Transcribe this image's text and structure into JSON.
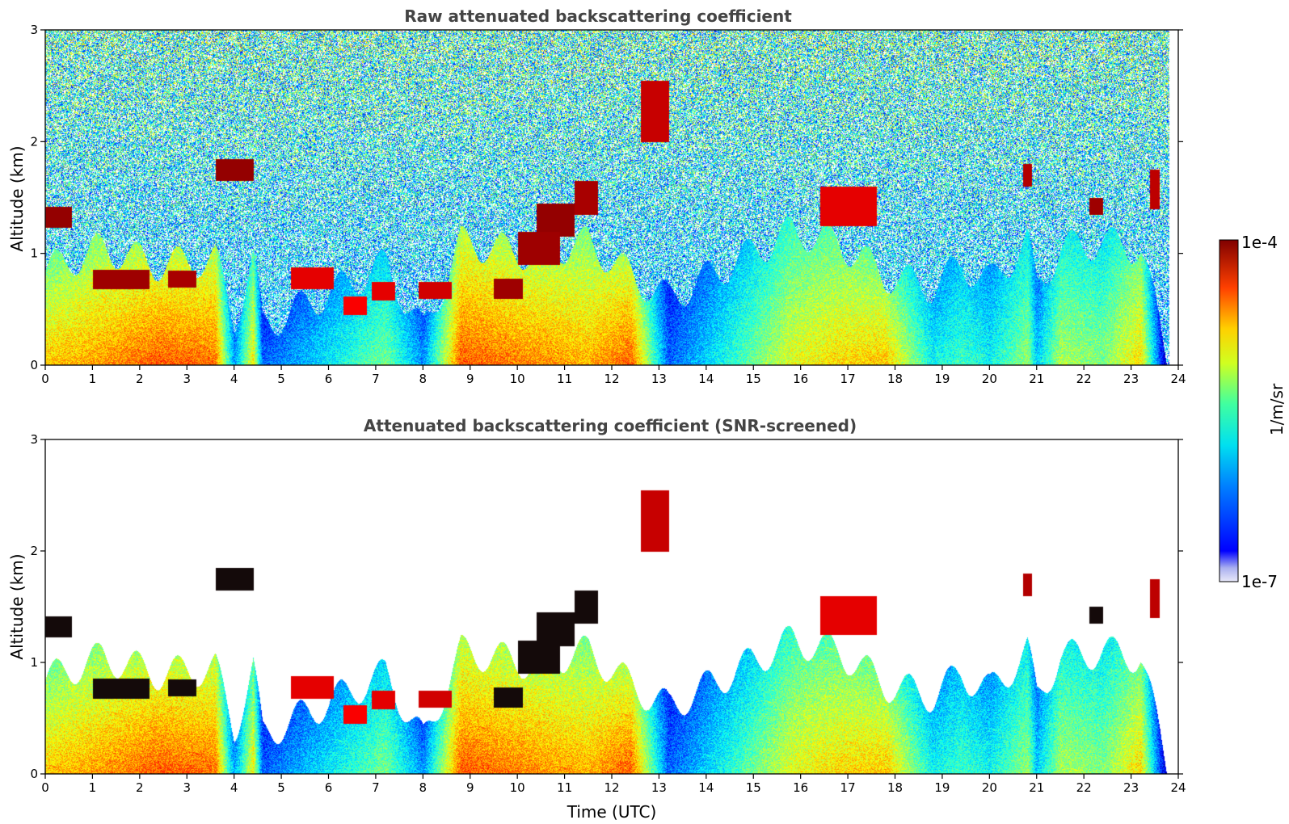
{
  "chart_data": [
    {
      "type": "heatmap",
      "title": "Raw attenuated backscattering coefficient",
      "xlabel": "",
      "ylabel": "Altitude (km)",
      "xlim": [
        0,
        24
      ],
      "ylim": [
        0,
        3
      ],
      "x_ticks": [
        "0",
        "1",
        "2",
        "3",
        "4",
        "5",
        "6",
        "7",
        "8",
        "9",
        "10",
        "11",
        "12",
        "13",
        "14",
        "15",
        "16",
        "17",
        "18",
        "19",
        "20",
        "21",
        "22",
        "23",
        "24"
      ],
      "y_ticks": [
        "0",
        "1",
        "2",
        "3"
      ],
      "layers": [
        {
          "t0": 0.0,
          "t1": 0.55,
          "z0": 1.23,
          "z1": 1.42,
          "level": 0.98
        },
        {
          "t0": 1.0,
          "t1": 2.2,
          "z0": 0.68,
          "z1": 0.86,
          "level": 0.97
        },
        {
          "t0": 2.6,
          "t1": 3.2,
          "z0": 0.7,
          "z1": 0.85,
          "level": 0.96
        },
        {
          "t0": 3.6,
          "t1": 4.4,
          "z0": 1.65,
          "z1": 1.85,
          "level": 0.98
        },
        {
          "t0": 5.2,
          "t1": 6.1,
          "z0": 0.68,
          "z1": 0.88,
          "level": 0.9
        },
        {
          "t0": 6.3,
          "t1": 6.8,
          "z0": 0.45,
          "z1": 0.62,
          "level": 0.88
        },
        {
          "t0": 6.9,
          "t1": 7.4,
          "z0": 0.58,
          "z1": 0.75,
          "level": 0.9
        },
        {
          "t0": 7.9,
          "t1": 8.6,
          "z0": 0.6,
          "z1": 0.75,
          "level": 0.92
        },
        {
          "t0": 9.5,
          "t1": 10.1,
          "z0": 0.6,
          "z1": 0.78,
          "level": 0.97
        },
        {
          "t0": 10.0,
          "t1": 10.9,
          "z0": 0.9,
          "z1": 1.2,
          "level": 0.97
        },
        {
          "t0": 10.4,
          "t1": 11.2,
          "z0": 1.15,
          "z1": 1.45,
          "level": 0.98
        },
        {
          "t0": 11.2,
          "t1": 11.7,
          "z0": 1.35,
          "z1": 1.65,
          "level": 0.96
        },
        {
          "t0": 12.6,
          "t1": 13.2,
          "z0": 2.0,
          "z1": 2.55,
          "level": 0.93
        },
        {
          "t0": 16.4,
          "t1": 17.6,
          "z0": 1.25,
          "z1": 1.6,
          "level": 0.9
        },
        {
          "t0": 20.7,
          "t1": 20.9,
          "z0": 1.6,
          "z1": 1.8,
          "level": 0.95
        },
        {
          "t0": 22.1,
          "t1": 22.4,
          "z0": 1.35,
          "z1": 1.5,
          "level": 0.97
        },
        {
          "t0": 23.4,
          "t1": 23.6,
          "z0": 1.4,
          "z1": 1.75,
          "level": 0.94
        }
      ]
    },
    {
      "type": "heatmap",
      "title": "Attenuated backscattering coefficient (SNR-screened)",
      "xlabel": "Time (UTC)",
      "ylabel": "Altitude (km)",
      "xlim": [
        0,
        24
      ],
      "ylim": [
        0,
        3
      ],
      "x_ticks": [
        "0",
        "1",
        "2",
        "3",
        "4",
        "5",
        "6",
        "7",
        "8",
        "9",
        "10",
        "11",
        "12",
        "13",
        "14",
        "15",
        "16",
        "17",
        "18",
        "19",
        "20",
        "21",
        "22",
        "23",
        "24"
      ],
      "y_ticks": [
        "0",
        "1",
        "2",
        "3"
      ],
      "screened": true
    }
  ],
  "colorbar": {
    "label": "1/m/sr",
    "max_label": "1e-4",
    "min_label": "1e-7",
    "min": 1e-07,
    "max": 0.0001,
    "scale": "log",
    "colormap": "jet"
  },
  "profile_segments": [
    {
      "t": 0.0,
      "top": 0.85,
      "level": 0.62
    },
    {
      "t": 1.2,
      "top": 1.05,
      "level": 0.66
    },
    {
      "t": 2.4,
      "top": 0.9,
      "level": 0.72
    },
    {
      "t": 3.6,
      "top": 0.95,
      "level": 0.7
    },
    {
      "t": 4.0,
      "top": 0.4,
      "level": 0.25
    },
    {
      "t": 4.4,
      "top": 0.95,
      "level": 0.58
    },
    {
      "t": 4.6,
      "top": 0.35,
      "level": 0.2
    },
    {
      "t": 7.2,
      "top": 0.9,
      "level": 0.45
    },
    {
      "t": 8.0,
      "top": 0.3,
      "level": 0.25
    },
    {
      "t": 8.8,
      "top": 1.1,
      "level": 0.72
    },
    {
      "t": 10.2,
      "top": 1.0,
      "level": 0.68
    },
    {
      "t": 11.5,
      "top": 1.1,
      "level": 0.64
    },
    {
      "t": 12.4,
      "top": 0.8,
      "level": 0.72
    },
    {
      "t": 13.2,
      "top": 0.6,
      "level": 0.2
    },
    {
      "t": 15.8,
      "top": 1.2,
      "level": 0.55
    },
    {
      "t": 16.8,
      "top": 1.1,
      "level": 0.6
    },
    {
      "t": 17.8,
      "top": 0.8,
      "level": 0.62
    },
    {
      "t": 18.8,
      "top": 0.7,
      "level": 0.35
    },
    {
      "t": 19.4,
      "top": 0.9,
      "level": 0.4
    },
    {
      "t": 20.0,
      "top": 0.75,
      "level": 0.35
    },
    {
      "t": 20.8,
      "top": 1.1,
      "level": 0.48
    },
    {
      "t": 21.0,
      "top": 0.7,
      "level": 0.3
    },
    {
      "t": 21.5,
      "top": 1.05,
      "level": 0.5
    },
    {
      "t": 22.4,
      "top": 1.1,
      "level": 0.46
    },
    {
      "t": 23.2,
      "top": 1.05,
      "level": 0.6
    },
    {
      "t": 23.8,
      "top": 0.0,
      "level": 0.0
    }
  ],
  "colors": {
    "title": "#444444",
    "axes": "#000000",
    "background": "#ffffff",
    "no_data": "#ffffff"
  }
}
